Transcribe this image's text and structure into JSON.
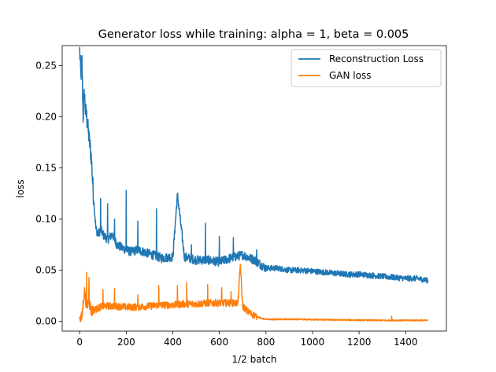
{
  "chart_data": {
    "type": "line",
    "title": "Generator loss while training: alpha = 1, beta = 0.005",
    "xlabel": "1/2 batch",
    "ylabel": "loss",
    "xlim": [
      -75,
      1575
    ],
    "ylim": [
      -0.0095,
      0.2695
    ],
    "xticks": [
      0,
      200,
      400,
      600,
      800,
      1000,
      1200,
      1400
    ],
    "xtick_labels": [
      "0",
      "200",
      "400",
      "600",
      "800",
      "1000",
      "1200",
      "1400"
    ],
    "yticks": [
      0.0,
      0.05,
      0.1,
      0.15,
      0.2,
      0.25
    ],
    "ytick_labels": [
      "0.00",
      "0.05",
      "0.10",
      "0.15",
      "0.20",
      "0.25"
    ],
    "grid": false,
    "legend_position": "upper right",
    "series": [
      {
        "name": "Reconstruction Loss",
        "color": "#1f77b4",
        "x": [
          0,
          5,
          10,
          15,
          20,
          25,
          30,
          40,
          50,
          60,
          70,
          80,
          90,
          100,
          120,
          140,
          160,
          180,
          200,
          220,
          250,
          300,
          350,
          400,
          420,
          450,
          500,
          550,
          600,
          650,
          700,
          750,
          800,
          850,
          900,
          950,
          1000,
          1050,
          1100,
          1150,
          1200,
          1250,
          1300,
          1350,
          1400,
          1450,
          1495
        ],
        "y": [
          0.265,
          0.24,
          0.255,
          0.2,
          0.225,
          0.205,
          0.2,
          0.18,
          0.16,
          0.12,
          0.09,
          0.085,
          0.09,
          0.085,
          0.08,
          0.085,
          0.075,
          0.072,
          0.07,
          0.068,
          0.07,
          0.066,
          0.062,
          0.063,
          0.124,
          0.063,
          0.06,
          0.06,
          0.058,
          0.062,
          0.065,
          0.06,
          0.052,
          0.052,
          0.05,
          0.05,
          0.049,
          0.048,
          0.047,
          0.046,
          0.046,
          0.045,
          0.044,
          0.043,
          0.042,
          0.042,
          0.04
        ],
        "spikes": [
          {
            "x": 90,
            "y": 0.12
          },
          {
            "x": 120,
            "y": 0.115
          },
          {
            "x": 150,
            "y": 0.1
          },
          {
            "x": 200,
            "y": 0.128
          },
          {
            "x": 250,
            "y": 0.098
          },
          {
            "x": 330,
            "y": 0.11
          },
          {
            "x": 420,
            "y": 0.124
          },
          {
            "x": 480,
            "y": 0.075
          },
          {
            "x": 540,
            "y": 0.096
          },
          {
            "x": 600,
            "y": 0.083
          },
          {
            "x": 660,
            "y": 0.082
          },
          {
            "x": 760,
            "y": 0.07
          }
        ]
      },
      {
        "name": "GAN loss",
        "color": "#ff7f0e",
        "x": [
          0,
          10,
          20,
          30,
          40,
          50,
          70,
          100,
          150,
          200,
          250,
          300,
          350,
          400,
          450,
          500,
          550,
          600,
          650,
          680,
          690,
          700,
          720,
          740,
          760,
          780,
          800,
          850,
          900,
          1000,
          1100,
          1200,
          1300,
          1400,
          1495
        ],
        "y": [
          0.003,
          0.004,
          0.03,
          0.015,
          0.02,
          0.01,
          0.012,
          0.015,
          0.015,
          0.014,
          0.014,
          0.015,
          0.016,
          0.016,
          0.017,
          0.017,
          0.018,
          0.018,
          0.018,
          0.018,
          0.057,
          0.015,
          0.01,
          0.007,
          0.005,
          0.003,
          0.002,
          0.002,
          0.002,
          0.0018,
          0.0015,
          0.0012,
          0.001,
          0.001,
          0.001
        ],
        "spikes": [
          {
            "x": 30,
            "y": 0.048
          },
          {
            "x": 40,
            "y": 0.043
          },
          {
            "x": 100,
            "y": 0.031
          },
          {
            "x": 150,
            "y": 0.032
          },
          {
            "x": 250,
            "y": 0.026
          },
          {
            "x": 340,
            "y": 0.035
          },
          {
            "x": 420,
            "y": 0.035
          },
          {
            "x": 460,
            "y": 0.038
          },
          {
            "x": 550,
            "y": 0.036
          },
          {
            "x": 610,
            "y": 0.033
          },
          {
            "x": 650,
            "y": 0.029
          },
          {
            "x": 1340,
            "y": 0.005
          }
        ]
      }
    ]
  }
}
